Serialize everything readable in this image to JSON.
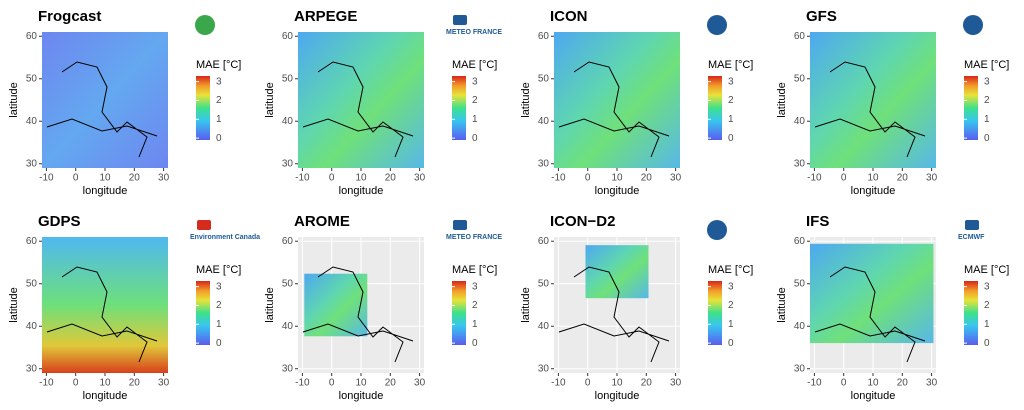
{
  "chart_data": [
    {
      "type": "map",
      "title": "Frogcast",
      "xlabel": "longitude",
      "ylabel": "latitude",
      "xlim": [
        -11.5,
        31.5
      ],
      "ylim": [
        29,
        61
      ],
      "xticks": [
        -10,
        0,
        10,
        20,
        30
      ],
      "yticks": [
        30,
        40,
        50,
        60
      ],
      "colorbar_label": "MAE [°C]",
      "colorbar_lim": [
        -0.1,
        3.3
      ],
      "colorbar_ticks": [
        0,
        1,
        2,
        3
      ]
    },
    {
      "type": "map",
      "title": "ARPEGE",
      "logo_text": "METEO FRANCE",
      "xlabel": "longitude",
      "ylabel": "latitude",
      "xlim": [
        -11.5,
        31.5
      ],
      "ylim": [
        29,
        61
      ],
      "xticks": [
        -10,
        0,
        10,
        20,
        30
      ],
      "yticks": [
        30,
        40,
        50,
        60
      ],
      "colorbar_label": "MAE [°C]",
      "colorbar_lim": [
        -0.1,
        3.3
      ],
      "colorbar_ticks": [
        0,
        1,
        2,
        3
      ]
    },
    {
      "type": "map",
      "title": "ICON",
      "xlabel": "longitude",
      "ylabel": "latitude",
      "xlim": [
        -11.5,
        31.5
      ],
      "ylim": [
        29,
        61
      ],
      "xticks": [
        -10,
        0,
        10,
        20,
        30
      ],
      "yticks": [
        30,
        40,
        50,
        60
      ],
      "colorbar_label": "MAE [°C]",
      "colorbar_lim": [
        -0.1,
        3.3
      ],
      "colorbar_ticks": [
        0,
        1,
        2,
        3
      ]
    },
    {
      "type": "map",
      "title": "GFS",
      "xlabel": "longitude",
      "ylabel": "latitude",
      "xlim": [
        -11.5,
        31.5
      ],
      "ylim": [
        29,
        61
      ],
      "xticks": [
        -10,
        0,
        10,
        20,
        30
      ],
      "yticks": [
        30,
        40,
        50,
        60
      ],
      "colorbar_label": "MAE [°C]",
      "colorbar_lim": [
        -0.1,
        3.3
      ],
      "colorbar_ticks": [
        0,
        1,
        2,
        3
      ]
    },
    {
      "type": "map",
      "title": "GDPS",
      "logo_text": "Environment Canada",
      "xlabel": "longitude",
      "ylabel": "latitude",
      "xlim": [
        -11.5,
        31.5
      ],
      "ylim": [
        29,
        61
      ],
      "xticks": [
        -10,
        0,
        10,
        20,
        30
      ],
      "yticks": [
        30,
        40,
        50,
        60
      ],
      "colorbar_label": "MAE [°C]",
      "colorbar_lim": [
        -0.1,
        3.3
      ],
      "colorbar_ticks": [
        0,
        1,
        2,
        3
      ]
    },
    {
      "type": "map",
      "title": "AROME",
      "logo_text": "METEO FRANCE",
      "xlabel": "longitude",
      "ylabel": "latitude",
      "xlim": [
        -11.5,
        31.5
      ],
      "ylim": [
        29,
        61
      ],
      "xticks": [
        -10,
        0,
        10,
        20,
        30
      ],
      "yticks": [
        30,
        40,
        50,
        60
      ],
      "colorbar_label": "MAE [°C]",
      "colorbar_lim": [
        -0.1,
        3.3
      ],
      "colorbar_ticks": [
        0,
        1,
        2,
        3
      ]
    },
    {
      "type": "map",
      "title": "ICON−D2",
      "xlabel": "longitude",
      "ylabel": "latitude",
      "xlim": [
        -11.5,
        31.5
      ],
      "ylim": [
        29,
        61
      ],
      "xticks": [
        -10,
        0,
        10,
        20,
        30
      ],
      "yticks": [
        30,
        40,
        50,
        60
      ],
      "colorbar_label": "MAE [°C]",
      "colorbar_lim": [
        -0.1,
        3.3
      ],
      "colorbar_ticks": [
        0,
        1,
        2,
        3
      ]
    },
    {
      "type": "map",
      "title": "IFS",
      "logo_text": "ECMWF",
      "xlabel": "longitude",
      "ylabel": "latitude",
      "xlim": [
        -11.5,
        31.5
      ],
      "ylim": [
        29,
        61
      ],
      "xticks": [
        -10,
        0,
        10,
        20,
        30
      ],
      "yticks": [
        30,
        40,
        50,
        60
      ],
      "colorbar_label": "MAE [°C]",
      "colorbar_lim": [
        -0.1,
        3.3
      ],
      "colorbar_ticks": [
        0,
        1,
        2,
        3
      ]
    }
  ]
}
